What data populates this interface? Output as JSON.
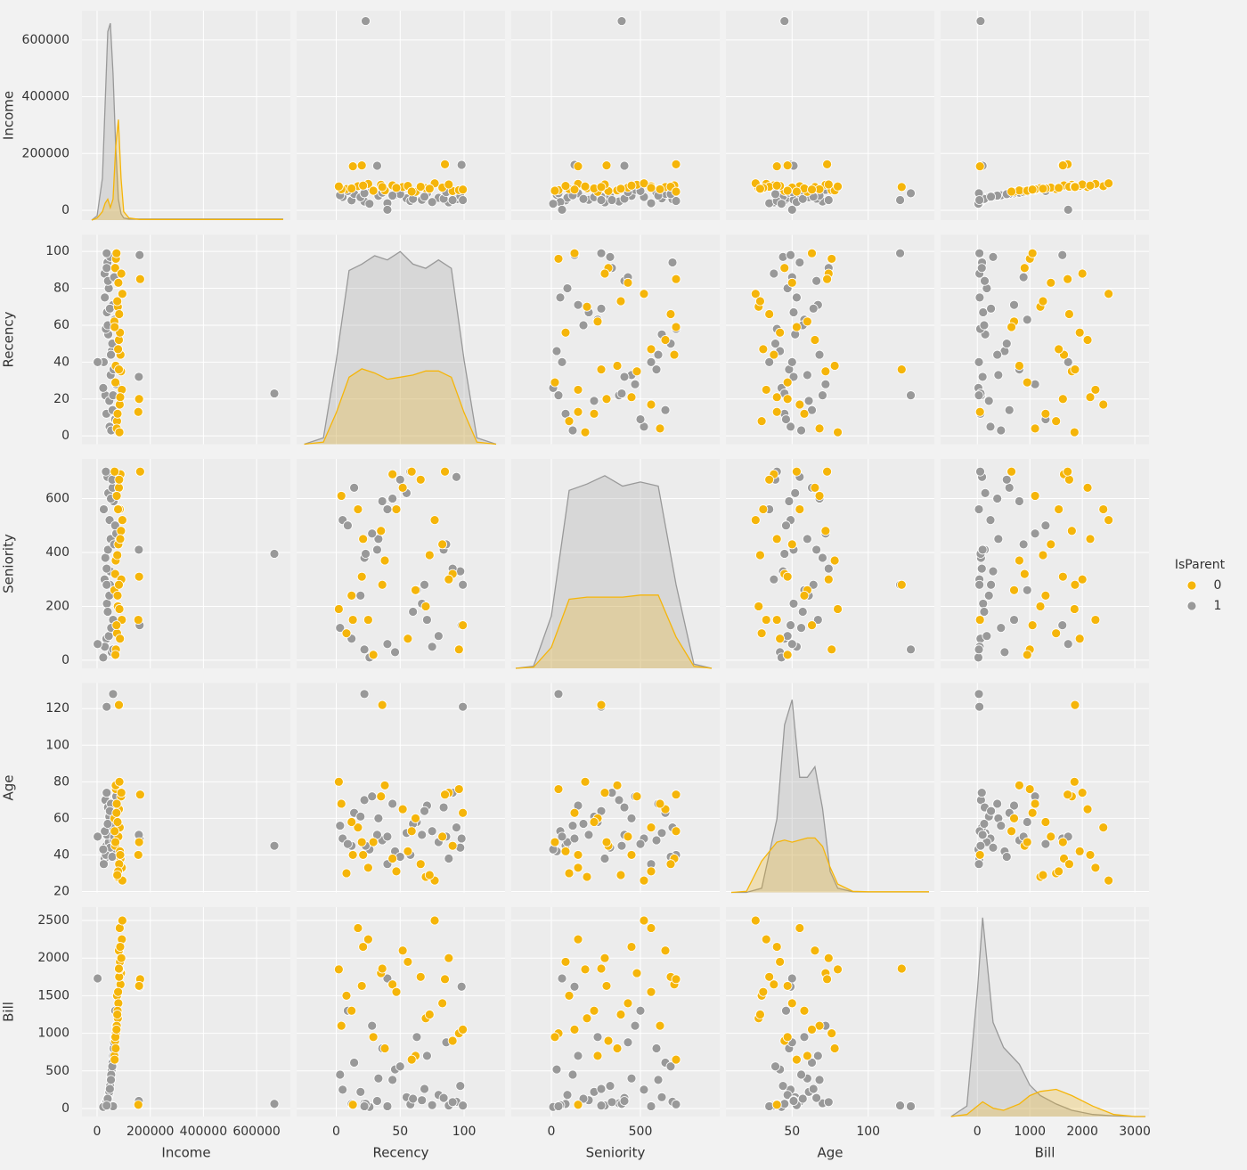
{
  "chart_data": {
    "type": "pairplot",
    "legend_title": "IsParent",
    "legend": "right",
    "grid": true,
    "kde_ylim": [
      0,
      100
    ],
    "variables": [
      {
        "name": "Income",
        "xlim": [
          -57000,
          727000
        ],
        "xticks": [
          0,
          200000,
          400000,
          600000
        ],
        "ylim": [
          -34500,
          703000
        ],
        "yticks": [
          0,
          200000,
          400000,
          600000
        ],
        "kde": {
          "x": [
            -20000,
            0,
            20000,
            30000,
            40000,
            50000,
            60000,
            70000,
            80000,
            90000,
            100000,
            120000,
            160000,
            300000,
            500000,
            700000
          ],
          "series": [
            [
              0,
              1,
              4,
              8,
              10,
              6,
              10,
              35,
              48,
              20,
              4,
              1,
              0.3,
              0.3,
              0.3,
              0.3
            ],
            [
              0,
              2,
              20,
              55,
              90,
              94,
              70,
              35,
              10,
              3,
              1,
              0.5,
              0.5,
              0.5,
              0.5,
              0.5
            ]
          ]
        }
      },
      {
        "name": "Recency",
        "xlim": [
          -31,
          132
        ],
        "xticks": [
          0,
          50,
          100
        ],
        "ylim": [
          -4.5,
          109
        ],
        "yticks": [
          0,
          20,
          40,
          60,
          80,
          100
        ],
        "kde": {
          "x": [
            -25,
            -10,
            0,
            10,
            20,
            30,
            40,
            50,
            60,
            70,
            80,
            90,
            100,
            110,
            125
          ],
          "series": [
            [
              0,
              1,
              15,
              32,
              36,
              34,
              31,
              32,
              33,
              35,
              35,
              32,
              15,
              1,
              0
            ],
            [
              0,
              3,
              40,
              83,
              86,
              90,
              88,
              92,
              86,
              84,
              88,
              84,
              40,
              3,
              0
            ]
          ]
        }
      },
      {
        "name": "Seniority",
        "xlim": [
          -225,
          945
        ],
        "xticks": [
          0,
          500
        ],
        "ylim": [
          -30,
          747
        ],
        "yticks": [
          0,
          200,
          400,
          600
        ],
        "kde": {
          "x": [
            -200,
            -100,
            0,
            100,
            200,
            300,
            400,
            500,
            600,
            700,
            800,
            900
          ],
          "series": [
            [
              0,
              0.5,
              10,
              33,
              34,
              34,
              34,
              35,
              35,
              15,
              1,
              0
            ],
            [
              0,
              1,
              25,
              85,
              88,
              92,
              87,
              89,
              87,
              40,
              2,
              0
            ]
          ]
        }
      },
      {
        "name": "Age",
        "xlim": [
          6.5,
          143.5
        ],
        "xticks": [
          50,
          100
        ],
        "ylim": [
          19.5,
          134
        ],
        "yticks": [
          20,
          40,
          60,
          80,
          100,
          120
        ],
        "kde": {
          "x": [
            10,
            20,
            30,
            40,
            45,
            50,
            55,
            60,
            65,
            70,
            75,
            80,
            90,
            100,
            120,
            140
          ],
          "series": [
            [
              0,
              0.5,
              15,
              24,
              25,
              24,
              25,
              26,
              26,
              22,
              12,
              4,
              0.5,
              0.3,
              0.3,
              0.3
            ],
            [
              0,
              0,
              2,
              35,
              80,
              92,
              55,
              55,
              60,
              40,
              10,
              2,
              0.3,
              0.2,
              0.2,
              0.2
            ]
          ]
        }
      },
      {
        "name": "Bill",
        "xlim": [
          -700,
          3270
        ],
        "xticks": [
          0,
          1000,
          2000,
          3000
        ],
        "ylim": [
          -107,
          2678
        ],
        "yticks": [
          0,
          500,
          1000,
          1500,
          2000,
          2500
        ],
        "kde": {
          "x": [
            -500,
            -200,
            0,
            100,
            300,
            500,
            800,
            1000,
            1200,
            1500,
            1800,
            2200,
            2600,
            3000,
            3200
          ],
          "series": [
            [
              0,
              1,
              5,
              7,
              4,
              3,
              6,
              10,
              12,
              13,
              10,
              5,
              1,
              0,
              0
            ],
            [
              0,
              5,
              60,
              95,
              45,
              33,
              25,
              15,
              10,
              6,
              3,
              1,
              0.3,
              0,
              0
            ]
          ]
        }
      }
    ],
    "series": [
      {
        "name": "0",
        "color": "#f5b50a",
        "values": {
          "Income": [
            75000,
            82000,
            68000,
            90000,
            78000,
            85000,
            71000,
            88000,
            65000,
            93000,
            80000,
            74000,
            86000,
            70000,
            95000,
            77000,
            83000,
            69000,
            91000,
            79000,
            73000,
            87000,
            66000,
            84000,
            76000,
            162000,
            155000,
            82000,
            158000
          ],
          "Recency": [
            8,
            52,
            91,
            35,
            70,
            17,
            96,
            44,
            62,
            25,
            83,
            4,
            56,
            38,
            77,
            12,
            66,
            29,
            88,
            47,
            99,
            21,
            59,
            2,
            73,
            85,
            13,
            36,
            20
          ],
          "Seniority": [
            100,
            640,
            320,
            480,
            200,
            560,
            40,
            690,
            260,
            150,
            430,
            610,
            80,
            370,
            520,
            240,
            670,
            20,
            300,
            560,
            130,
            450,
            700,
            190,
            390,
            700,
            150,
            280,
            310
          ],
          "Age": [
            30,
            65,
            45,
            72,
            28,
            55,
            76,
            38,
            60,
            33,
            50,
            68,
            42,
            78,
            26,
            58,
            35,
            47,
            74,
            31,
            63,
            40,
            53,
            80,
            29,
            73,
            40,
            122,
            47
          ],
          "Bill": [
            1500,
            2100,
            900,
            1800,
            1200,
            2400,
            1000,
            1650,
            700,
            2250,
            1400,
            1100,
            1950,
            800,
            2500,
            1300,
            1750,
            950,
            2000,
            1550,
            1050,
            2150,
            650,
            1850,
            1250,
            1720,
            50,
            1860,
            1630
          ]
        }
      },
      {
        "name": "1",
        "color": "#999999",
        "values": {
          "Income": [
            35000,
            42000,
            28000,
            51000,
            60000,
            47000,
            39000,
            55000,
            31000,
            66000,
            44000,
            25000,
            58000,
            37000,
            49000,
            72000,
            33000,
            53000,
            41000,
            62000,
            29000,
            46000,
            57000,
            36000,
            68000,
            40000,
            52000,
            23000,
            64000,
            48000,
            666666,
            160000,
            157000,
            60000,
            36000,
            2000
          ],
          "Recency": [
            12,
            55,
            88,
            33,
            71,
            5,
            94,
            46,
            22,
            63,
            80,
            40,
            14,
            67,
            97,
            28,
            58,
            3,
            84,
            36,
            75,
            19,
            50,
            91,
            9,
            60,
            44,
            26,
            86,
            69,
            23,
            98,
            32,
            22,
            99,
            40
          ],
          "Seniority": [
            80,
            620,
            300,
            450,
            150,
            520,
            680,
            30,
            380,
            260,
            90,
            560,
            640,
            210,
            330,
            470,
            700,
            120,
            410,
            590,
            50,
            240,
            670,
            340,
            500,
            180,
            600,
            10,
            430,
            280,
            395,
            130,
            410,
            40,
            280,
            60
          ],
          "Age": [
            45,
            52,
            38,
            60,
            67,
            49,
            55,
            42,
            70,
            58,
            47,
            35,
            63,
            51,
            44,
            72,
            40,
            56,
            66,
            48,
            53,
            61,
            39,
            74,
            46,
            57,
            68,
            43,
            50,
            64,
            45,
            49,
            51,
            128,
            121,
            50
          ],
          "Bill": [
            60,
            150,
            40,
            400,
            700,
            250,
            90,
            520,
            70,
            950,
            180,
            30,
            610,
            110,
            300,
            1100,
            55,
            450,
            140,
            800,
            45,
            220,
            560,
            85,
            1300,
            130,
            380,
            20,
            880,
            260,
            62,
            1620,
            100,
            30,
            40,
            1730
          ]
        }
      }
    ]
  }
}
